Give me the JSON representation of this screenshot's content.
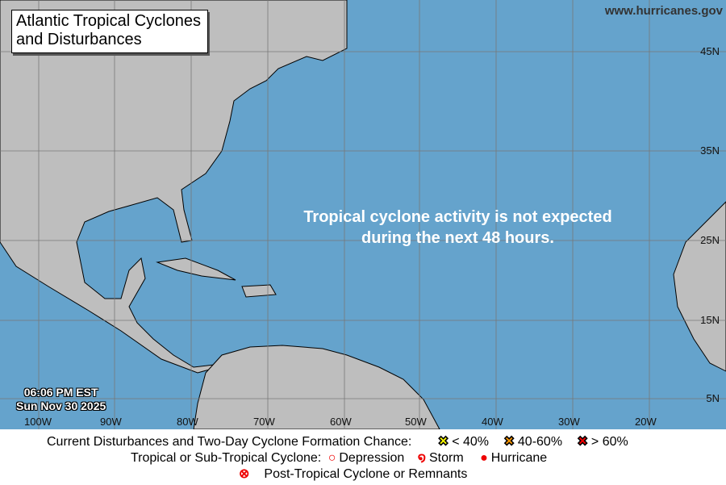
{
  "title": "Atlantic Tropical Cyclones and Disturbances",
  "title_lines": [
    "Atlantic Tropical Cyclones",
    "and Disturbances"
  ],
  "website": "www.hurricanes.gov",
  "message_lines": [
    "Tropical cyclone activity is not expected",
    "during the next 48 hours."
  ],
  "time": "06:06 PM EST",
  "date": "Sun Nov 30 2025",
  "lon_labels": [
    "100W",
    "90W",
    "80W",
    "70W",
    "60W",
    "50W",
    "40W",
    "30W",
    "20W"
  ],
  "lat_labels": [
    "45N",
    "35N",
    "25N",
    "15N",
    "5N"
  ],
  "legend": {
    "disturbances_label": "Current Disturbances and Two-Day Cyclone Formation Chance:",
    "low": "< 40%",
    "medium": "40-60%",
    "high": "> 60%",
    "cyclone_label": "Tropical or Sub-Tropical Cyclone:",
    "depression": "Depression",
    "storm": "Storm",
    "hurricane": "Hurricane",
    "post_tropical": "Post-Tropical Cyclone or Remnants"
  },
  "colors": {
    "ocean": "#65a3cc",
    "land": "#bebebe",
    "low": "#ffff00",
    "medium": "#ff9900",
    "high": "#ff0000",
    "cyclone": "#ee0000"
  }
}
